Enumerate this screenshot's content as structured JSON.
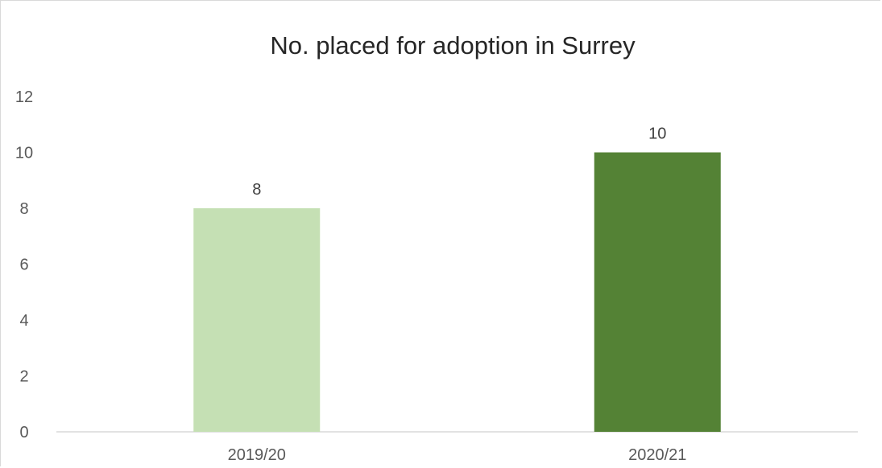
{
  "chart_data": {
    "type": "bar",
    "title": "No. placed for adoption in Surrey",
    "xlabel": "",
    "ylabel": "",
    "categories": [
      "2019/20",
      "2020/21"
    ],
    "values": [
      8,
      10
    ],
    "data_labels": [
      "8",
      "10"
    ],
    "bar_colors": [
      "#c5e0b4",
      "#548235"
    ],
    "ylim": [
      0,
      12
    ],
    "yticks": [
      0,
      2,
      4,
      6,
      8,
      10,
      12
    ],
    "grid": false,
    "legend": "none"
  }
}
